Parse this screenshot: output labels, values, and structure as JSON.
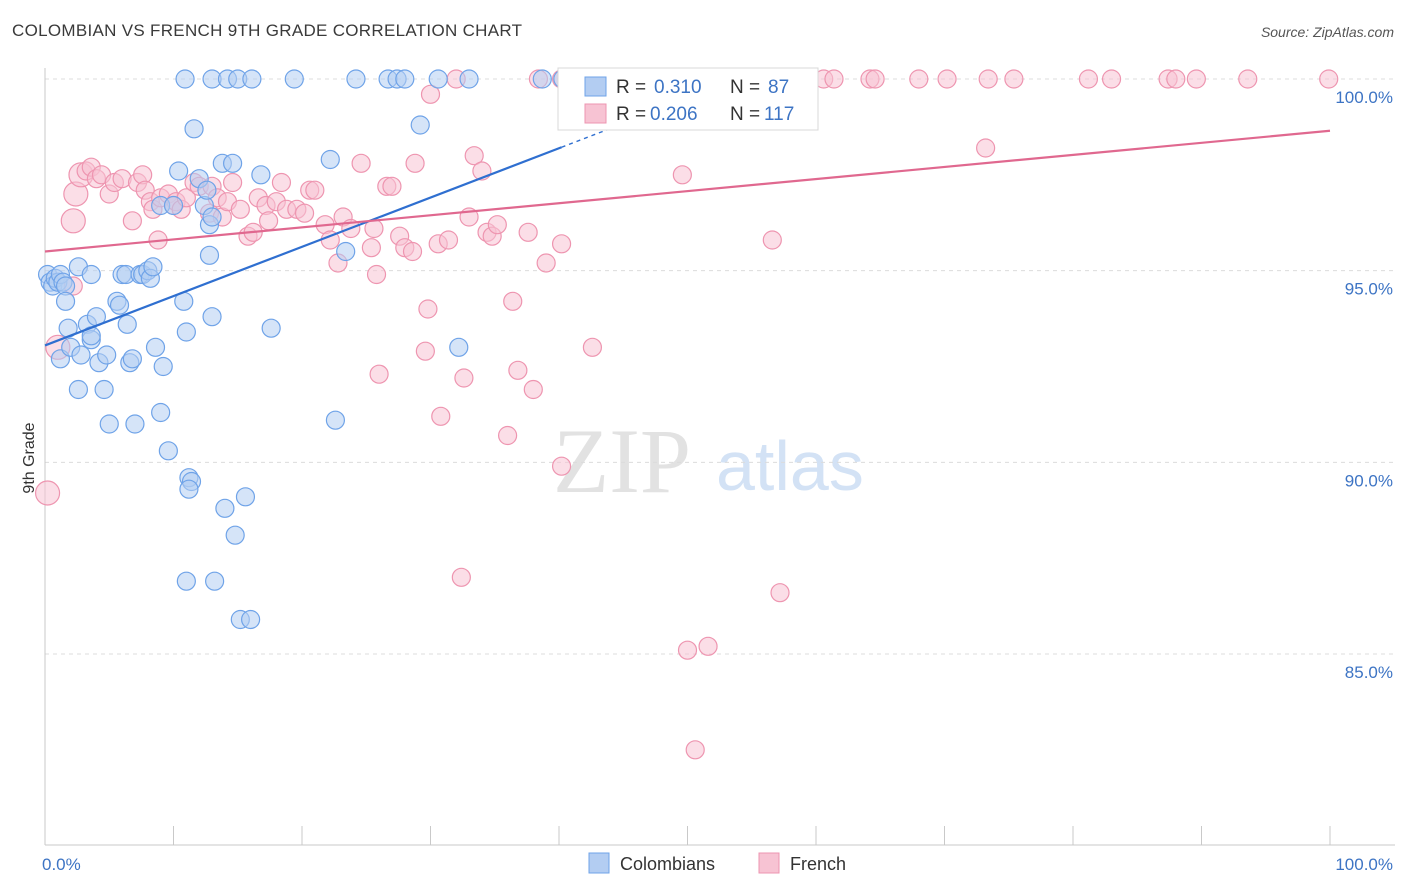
{
  "title": "COLOMBIAN VS FRENCH 9TH GRADE CORRELATION CHART",
  "source": "Source: ZipAtlas.com",
  "watermark": {
    "zip": "ZIP",
    "atlas": "atlas"
  },
  "legend": {
    "r_label": "R =",
    "n_label": "N =",
    "rows": [
      {
        "r": "0.310",
        "n": "87"
      },
      {
        "r": "0.206",
        "n": "117"
      }
    ]
  },
  "chart_data": {
    "type": "scatter",
    "ylabel": "9th Grade",
    "xlabel": "",
    "xlim": [
      0,
      100
    ],
    "ylim": [
      80.5,
      100.8
    ],
    "x_tick_labels": [
      "0.0%",
      "100.0%"
    ],
    "y_ticks": [
      85,
      90,
      95,
      100
    ],
    "y_tick_labels": [
      "85.0%",
      "90.0%",
      "95.0%",
      "100.0%"
    ],
    "grid": true,
    "legend_position": "top-center",
    "series": [
      {
        "name": "Colombians",
        "color": "#6fa3e8",
        "fill": "#b3cdf2",
        "trend": {
          "x0": 0.0,
          "y0": 93.05,
          "x1": 40.2,
          "y1": 98.22,
          "dash_to_x": 44.5
        },
        "points": [
          [
            0.2,
            94.9
          ],
          [
            0.4,
            94.7
          ],
          [
            0.6,
            94.6
          ],
          [
            0.8,
            94.8
          ],
          [
            1.0,
            94.7
          ],
          [
            1.2,
            94.9
          ],
          [
            1.4,
            94.7
          ],
          [
            1.6,
            94.6
          ],
          [
            2.6,
            95.1
          ],
          [
            3.6,
            94.9
          ],
          [
            1.2,
            92.7
          ],
          [
            1.8,
            93.5
          ],
          [
            1.6,
            94.2
          ],
          [
            2.0,
            93.0
          ],
          [
            2.6,
            91.9
          ],
          [
            2.8,
            92.8
          ],
          [
            3.3,
            93.6
          ],
          [
            3.6,
            93.2
          ],
          [
            3.6,
            93.3
          ],
          [
            4.0,
            93.8
          ],
          [
            4.2,
            92.6
          ],
          [
            4.6,
            91.9
          ],
          [
            4.8,
            92.8
          ],
          [
            5.0,
            91.0
          ],
          [
            5.6,
            94.2
          ],
          [
            5.8,
            94.1
          ],
          [
            6.0,
            94.9
          ],
          [
            6.3,
            94.9
          ],
          [
            6.4,
            93.6
          ],
          [
            6.6,
            92.6
          ],
          [
            6.8,
            92.7
          ],
          [
            7.0,
            91.0
          ],
          [
            7.4,
            94.9
          ],
          [
            7.6,
            94.9
          ],
          [
            8.0,
            95.0
          ],
          [
            8.2,
            94.8
          ],
          [
            8.4,
            95.1
          ],
          [
            8.6,
            93.0
          ],
          [
            9.0,
            91.3
          ],
          [
            9.0,
            96.7
          ],
          [
            9.2,
            92.5
          ],
          [
            9.6,
            90.3
          ],
          [
            10.0,
            96.7
          ],
          [
            10.4,
            97.6
          ],
          [
            10.8,
            94.2
          ],
          [
            11.0,
            93.4
          ],
          [
            11.2,
            89.6
          ],
          [
            11.4,
            89.5
          ],
          [
            11.2,
            89.3
          ],
          [
            11.0,
            86.9
          ],
          [
            11.6,
            98.7
          ],
          [
            12.0,
            97.4
          ],
          [
            12.4,
            96.7
          ],
          [
            12.6,
            97.1
          ],
          [
            12.8,
            95.4
          ],
          [
            12.8,
            96.2
          ],
          [
            13.0,
            93.8
          ],
          [
            13.0,
            96.4
          ],
          [
            13.2,
            86.9
          ],
          [
            13.8,
            97.8
          ],
          [
            14.0,
            88.8
          ],
          [
            14.6,
            97.8
          ],
          [
            14.8,
            88.1
          ],
          [
            15.2,
            85.9
          ],
          [
            15.6,
            89.1
          ],
          [
            16.0,
            85.9
          ],
          [
            16.8,
            97.5
          ],
          [
            17.6,
            93.5
          ],
          [
            22.2,
            97.9
          ],
          [
            22.6,
            91.1
          ],
          [
            23.4,
            95.5
          ],
          [
            29.2,
            98.8
          ],
          [
            32.2,
            93.0
          ],
          [
            10.9,
            100.0
          ],
          [
            13.0,
            100.0
          ],
          [
            14.2,
            100.0
          ],
          [
            15.0,
            100.0
          ],
          [
            16.1,
            100.0
          ],
          [
            19.4,
            100.0
          ],
          [
            24.2,
            100.0
          ],
          [
            26.7,
            100.0
          ],
          [
            27.4,
            100.0
          ],
          [
            28.0,
            100.0
          ],
          [
            30.6,
            100.0
          ],
          [
            33.0,
            100.0
          ],
          [
            38.7,
            100.0
          ],
          [
            40.3,
            100.0
          ]
        ]
      },
      {
        "name": "French",
        "color": "#ee95b0",
        "fill": "#f7c3d3",
        "trend": {
          "x0": 0.0,
          "y0": 95.5,
          "x1": 100.0,
          "y1": 98.65
        },
        "points": [
          [
            0.2,
            89.2
          ],
          [
            1.0,
            93.0
          ],
          [
            2.2,
            94.6
          ],
          [
            2.2,
            96.3
          ],
          [
            2.4,
            97.0
          ],
          [
            2.8,
            97.5
          ],
          [
            3.2,
            97.6
          ],
          [
            3.6,
            97.7
          ],
          [
            4.0,
            97.4
          ],
          [
            4.4,
            97.5
          ],
          [
            5.0,
            97.0
          ],
          [
            5.4,
            97.3
          ],
          [
            6.0,
            97.4
          ],
          [
            6.8,
            96.3
          ],
          [
            7.2,
            97.3
          ],
          [
            7.6,
            97.5
          ],
          [
            7.8,
            97.1
          ],
          [
            8.2,
            96.8
          ],
          [
            8.4,
            96.6
          ],
          [
            8.8,
            95.8
          ],
          [
            9.0,
            96.9
          ],
          [
            9.6,
            97.0
          ],
          [
            10.0,
            96.7
          ],
          [
            10.2,
            96.8
          ],
          [
            10.6,
            96.6
          ],
          [
            11.0,
            96.9
          ],
          [
            11.6,
            97.3
          ],
          [
            12.0,
            97.2
          ],
          [
            12.8,
            96.5
          ],
          [
            13.0,
            97.2
          ],
          [
            13.4,
            96.9
          ],
          [
            13.8,
            96.4
          ],
          [
            14.2,
            96.8
          ],
          [
            14.6,
            97.3
          ],
          [
            15.2,
            96.6
          ],
          [
            15.8,
            95.9
          ],
          [
            16.2,
            96.0
          ],
          [
            16.6,
            96.9
          ],
          [
            17.2,
            96.7
          ],
          [
            17.4,
            96.3
          ],
          [
            18.0,
            96.8
          ],
          [
            18.4,
            97.3
          ],
          [
            18.8,
            96.6
          ],
          [
            19.6,
            96.6
          ],
          [
            20.2,
            96.5
          ],
          [
            20.6,
            97.1
          ],
          [
            21.0,
            97.1
          ],
          [
            21.8,
            96.2
          ],
          [
            22.2,
            95.8
          ],
          [
            22.8,
            95.2
          ],
          [
            23.2,
            96.4
          ],
          [
            23.8,
            96.1
          ],
          [
            24.6,
            97.8
          ],
          [
            25.4,
            95.6
          ],
          [
            25.6,
            96.1
          ],
          [
            25.8,
            94.9
          ],
          [
            26.0,
            92.3
          ],
          [
            26.6,
            97.2
          ],
          [
            27.0,
            97.2
          ],
          [
            27.6,
            95.9
          ],
          [
            28.0,
            95.6
          ],
          [
            28.6,
            95.5
          ],
          [
            28.8,
            97.8
          ],
          [
            29.6,
            92.9
          ],
          [
            29.8,
            94.0
          ],
          [
            30.0,
            99.6
          ],
          [
            30.6,
            95.7
          ],
          [
            30.8,
            91.2
          ],
          [
            31.4,
            95.8
          ],
          [
            32.0,
            100.0
          ],
          [
            32.4,
            87.0
          ],
          [
            32.6,
            92.2
          ],
          [
            33.0,
            96.4
          ],
          [
            33.4,
            98.0
          ],
          [
            34.0,
            97.6
          ],
          [
            34.4,
            96.0
          ],
          [
            34.8,
            95.9
          ],
          [
            35.2,
            96.2
          ],
          [
            36.0,
            90.7
          ],
          [
            36.4,
            94.2
          ],
          [
            36.8,
            92.4
          ],
          [
            37.6,
            96.0
          ],
          [
            38.0,
            91.9
          ],
          [
            38.4,
            100.0
          ],
          [
            39.0,
            95.2
          ],
          [
            40.2,
            100.0
          ],
          [
            40.2,
            95.7
          ],
          [
            40.2,
            89.9
          ],
          [
            42.6,
            93.0
          ],
          [
            42.8,
            100.0
          ],
          [
            43.8,
            100.0
          ],
          [
            45.2,
            100.0
          ],
          [
            47.2,
            100.0
          ],
          [
            49.6,
            97.5
          ],
          [
            50.0,
            85.1
          ],
          [
            50.6,
            82.5
          ],
          [
            51.6,
            85.2
          ],
          [
            52.8,
            100.0
          ],
          [
            56.2,
            100.0
          ],
          [
            56.6,
            95.8
          ],
          [
            57.2,
            86.6
          ],
          [
            60.6,
            100.0
          ],
          [
            61.4,
            100.0
          ],
          [
            64.2,
            100.0
          ],
          [
            64.6,
            100.0
          ],
          [
            68.0,
            100.0
          ],
          [
            70.2,
            100.0
          ],
          [
            73.2,
            98.2
          ],
          [
            73.4,
            100.0
          ],
          [
            75.4,
            100.0
          ],
          [
            81.2,
            100.0
          ],
          [
            83.0,
            100.0
          ],
          [
            87.4,
            100.0
          ],
          [
            88.0,
            100.0
          ],
          [
            89.6,
            100.0
          ],
          [
            93.6,
            100.0
          ],
          [
            99.9,
            100.0
          ]
        ]
      }
    ]
  }
}
